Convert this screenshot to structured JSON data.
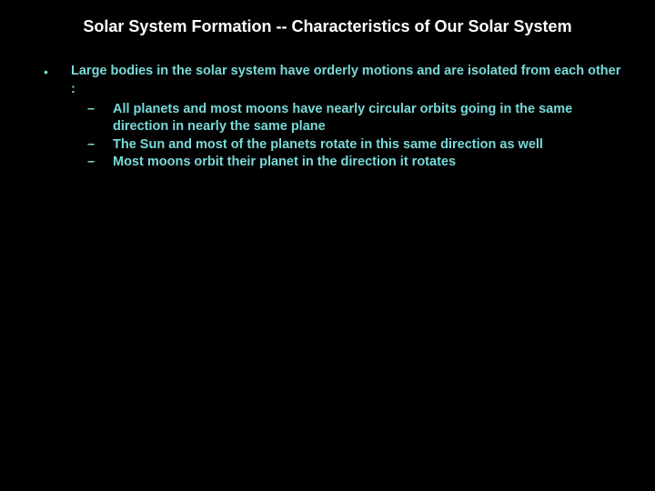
{
  "slide": {
    "background_color": "#000000",
    "title": {
      "text": "Solar System Formation -- Characteristics of Our Solar System",
      "color": "#ffffff",
      "font_size_pt": 18,
      "font_weight": "bold",
      "align": "center"
    },
    "body": {
      "text_color": "#7ad9d9",
      "font_size_pt": 14.5,
      "font_weight": "bold",
      "line_height": 1.35,
      "bullets": [
        {
          "marker": "•",
          "text": "Large bodies in the solar system have orderly motions and are isolated from each other :",
          "sub": [
            {
              "marker": "–",
              "text": "All planets and most moons have nearly circular orbits going in the same direction in nearly the same plane"
            },
            {
              "marker": "–",
              "text": "The Sun and most of the planets rotate in this same direction as well"
            },
            {
              "marker": "–",
              "text": "Most moons orbit their planet in the direction it rotates"
            }
          ]
        }
      ]
    }
  }
}
